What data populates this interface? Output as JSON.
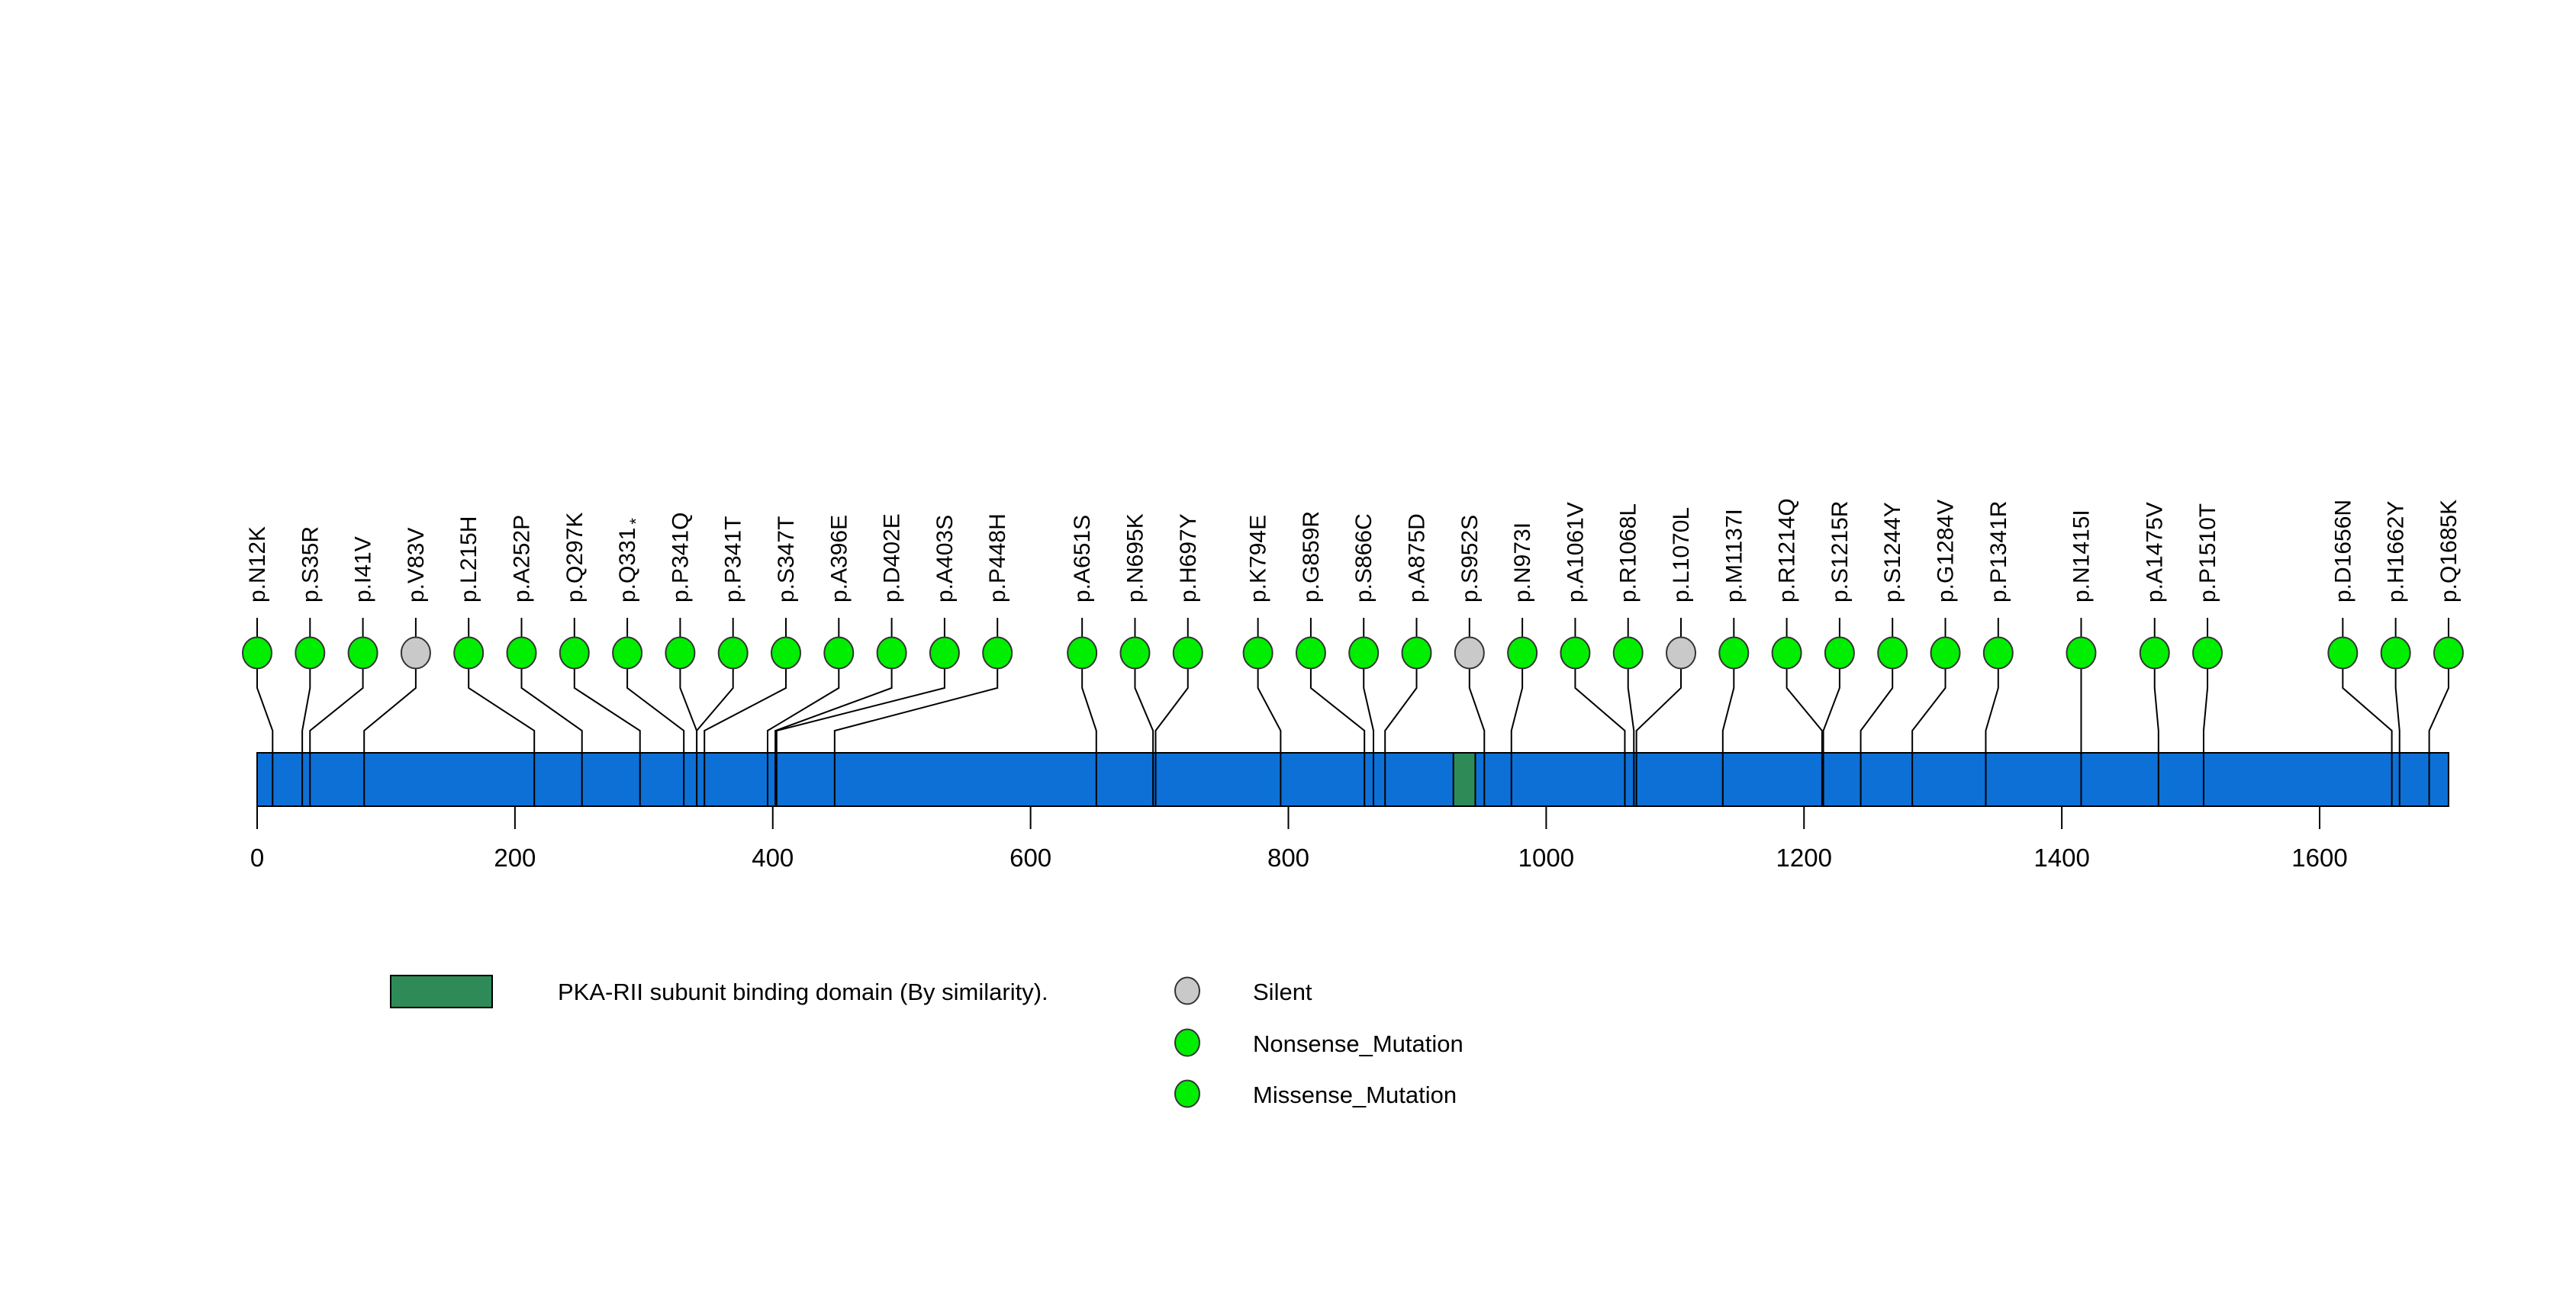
{
  "chart_data": {
    "type": "lollipop",
    "title": "",
    "xlabel": "",
    "axis": {
      "min": 0,
      "max": 1700,
      "ticks": [
        0,
        200,
        400,
        600,
        800,
        1000,
        1200,
        1400,
        1600
      ]
    },
    "protein_length": 1700,
    "backbone_color": "#0d70d6",
    "domains": [
      {
        "label": "PKA-RII subunit binding domain (By similarity).",
        "start": 928,
        "end": 945,
        "color": "#2e8b57"
      }
    ],
    "mutation_colors": {
      "Silent": "#c9c9c9",
      "Nonsense_Mutation": "#00ee00",
      "Missense_Mutation": "#00ee00"
    },
    "legend": [
      {
        "label": "Silent",
        "color": "#c9c9c9"
      },
      {
        "label": "Nonsense_Mutation",
        "color": "#00ee00"
      },
      {
        "label": "Missense_Mutation",
        "color": "#00ee00"
      }
    ],
    "mutations": [
      {
        "label": "p.N12K",
        "pos": 12,
        "type": "Missense_Mutation"
      },
      {
        "label": "p.S35R",
        "pos": 35,
        "type": "Missense_Mutation"
      },
      {
        "label": "p.I41V",
        "pos": 41,
        "type": "Missense_Mutation"
      },
      {
        "label": "p.V83V",
        "pos": 83,
        "type": "Silent"
      },
      {
        "label": "p.L215H",
        "pos": 215,
        "type": "Missense_Mutation"
      },
      {
        "label": "p.A252P",
        "pos": 252,
        "type": "Missense_Mutation"
      },
      {
        "label": "p.Q297K",
        "pos": 297,
        "type": "Missense_Mutation"
      },
      {
        "label": "p.Q331*",
        "pos": 331,
        "type": "Nonsense_Mutation"
      },
      {
        "label": "p.P341Q",
        "pos": 341,
        "type": "Missense_Mutation"
      },
      {
        "label": "p.P341T",
        "pos": 341,
        "type": "Missense_Mutation"
      },
      {
        "label": "p.S347T",
        "pos": 347,
        "type": "Missense_Mutation"
      },
      {
        "label": "p.A396E",
        "pos": 396,
        "type": "Missense_Mutation"
      },
      {
        "label": "p.D402E",
        "pos": 402,
        "type": "Missense_Mutation"
      },
      {
        "label": "p.A403S",
        "pos": 403,
        "type": "Missense_Mutation"
      },
      {
        "label": "p.P448H",
        "pos": 448,
        "type": "Missense_Mutation"
      },
      {
        "label": "p.A651S",
        "pos": 651,
        "type": "Missense_Mutation"
      },
      {
        "label": "p.N695K",
        "pos": 695,
        "type": "Missense_Mutation"
      },
      {
        "label": "p.H697Y",
        "pos": 697,
        "type": "Missense_Mutation"
      },
      {
        "label": "p.K794E",
        "pos": 794,
        "type": "Missense_Mutation"
      },
      {
        "label": "p.G859R",
        "pos": 859,
        "type": "Missense_Mutation"
      },
      {
        "label": "p.S866C",
        "pos": 866,
        "type": "Missense_Mutation"
      },
      {
        "label": "p.A875D",
        "pos": 875,
        "type": "Missense_Mutation"
      },
      {
        "label": "p.S952S",
        "pos": 952,
        "type": "Silent"
      },
      {
        "label": "p.N973I",
        "pos": 973,
        "type": "Missense_Mutation"
      },
      {
        "label": "p.A1061V",
        "pos": 1061,
        "type": "Missense_Mutation"
      },
      {
        "label": "p.R1068L",
        "pos": 1068,
        "type": "Missense_Mutation"
      },
      {
        "label": "p.L1070L",
        "pos": 1070,
        "type": "Silent"
      },
      {
        "label": "p.M1137I",
        "pos": 1137,
        "type": "Missense_Mutation"
      },
      {
        "label": "p.R1214Q",
        "pos": 1214,
        "type": "Missense_Mutation"
      },
      {
        "label": "p.S1215R",
        "pos": 1215,
        "type": "Missense_Mutation"
      },
      {
        "label": "p.S1244Y",
        "pos": 1244,
        "type": "Missense_Mutation"
      },
      {
        "label": "p.G1284V",
        "pos": 1284,
        "type": "Missense_Mutation"
      },
      {
        "label": "p.P1341R",
        "pos": 1341,
        "type": "Missense_Mutation"
      },
      {
        "label": "p.N1415I",
        "pos": 1415,
        "type": "Missense_Mutation"
      },
      {
        "label": "p.A1475V",
        "pos": 1475,
        "type": "Missense_Mutation"
      },
      {
        "label": "p.P1510T",
        "pos": 1510,
        "type": "Missense_Mutation"
      },
      {
        "label": "p.D1656N",
        "pos": 1656,
        "type": "Missense_Mutation"
      },
      {
        "label": "p.H1662Y",
        "pos": 1662,
        "type": "Missense_Mutation"
      },
      {
        "label": "p.Q1685K",
        "pos": 1685,
        "type": "Missense_Mutation"
      }
    ]
  }
}
